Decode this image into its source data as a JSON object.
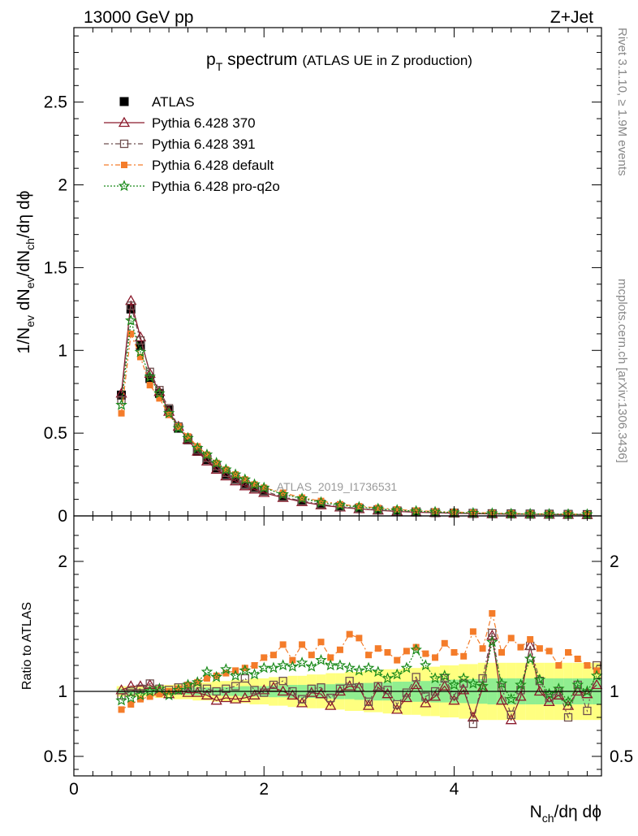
{
  "header": {
    "energy_label": "13000 GeV pp",
    "process_label": "Z+Jet"
  },
  "side_notes": {
    "rivet": "Rivet 3.1.10, ≥ 1.9M events",
    "mcplots": "mcplots.cern.ch [arXiv:1306.3436]"
  },
  "watermark": "ATLAS_2019_I1736531",
  "title": {
    "main_prefix": "p",
    "main_sub": "T",
    "main_suffix": " spectrum",
    "detail": "(ATLAS UE in Z production)"
  },
  "axes": {
    "top_ylabel": "1/N",
    "top_ylabel_sub1": "ev",
    "top_ylabel_mid": " dN",
    "top_ylabel_sub2": "ev",
    "top_ylabel_mid2": "/dN",
    "top_ylabel_sub3": "ch",
    "top_ylabel_tail": "/dη dϕ",
    "bottom_ylabel": "Ratio to ATLAS",
    "xlabel_prefix": "N",
    "xlabel_sub": "ch",
    "xlabel_tail": "/dη dϕ"
  },
  "legend": {
    "entries": [
      {
        "label": "ATLAS",
        "marker": "square-filled",
        "color": "#000000",
        "dash": ""
      },
      {
        "label": "Pythia 6.428 370",
        "marker": "triangle-open",
        "color": "#8b1a2c",
        "dash": ""
      },
      {
        "label": "Pythia 6.428 391",
        "marker": "square-open",
        "color": "#6e4f4f",
        "dash": "6 3 2 3"
      },
      {
        "label": "Pythia 6.428 default",
        "marker": "square-filled-small",
        "color": "#f47c2a",
        "dash": "6 3 2 3"
      },
      {
        "label": "Pythia 6.428 pro-q2o",
        "marker": "star",
        "color": "#1a8a1a",
        "dash": "2 2"
      }
    ]
  },
  "chart_data": [
    {
      "type": "scatter",
      "panel": "main",
      "xlim": [
        0,
        5.55
      ],
      "ylim": [
        0,
        2.95
      ],
      "yticks": [
        0,
        0.5,
        1,
        1.5,
        2,
        2.5
      ],
      "ytick_labels": [
        "0",
        "0.5",
        "1",
        "1.5",
        "2",
        "2.5"
      ],
      "series": [
        {
          "name": "ATLAS",
          "x": [
            0.5,
            0.6,
            0.7,
            0.8,
            0.9,
            1.0,
            1.1,
            1.2,
            1.3,
            1.4,
            1.5,
            1.6,
            1.7,
            1.8,
            1.9,
            2.0,
            2.2,
            2.4,
            2.6,
            2.8,
            3.0,
            3.2,
            3.4,
            3.6,
            3.8,
            4.0,
            4.2,
            4.4,
            4.6,
            4.8,
            5.0,
            5.2,
            5.4
          ],
          "y": [
            0.73,
            1.25,
            1.03,
            0.83,
            0.74,
            0.64,
            0.53,
            0.46,
            0.39,
            0.34,
            0.29,
            0.25,
            0.22,
            0.19,
            0.17,
            0.15,
            0.115,
            0.09,
            0.07,
            0.055,
            0.045,
            0.036,
            0.029,
            0.024,
            0.02,
            0.017,
            0.015,
            0.013,
            0.012,
            0.011,
            0.01,
            0.009,
            0.008
          ]
        },
        {
          "name": "Pythia 6.428 370",
          "x": [
            0.5,
            0.6,
            0.7,
            0.8,
            0.9,
            1.0,
            1.1,
            1.2,
            1.3,
            1.4,
            1.5,
            1.6,
            1.7,
            1.8,
            1.9,
            2.0,
            2.2,
            2.4,
            2.6,
            2.8,
            3.0,
            3.2,
            3.4,
            3.6,
            3.8,
            4.0,
            4.2,
            4.4,
            4.6,
            4.8,
            5.0,
            5.2,
            5.4
          ],
          "y": [
            0.74,
            1.3,
            1.08,
            0.86,
            0.75,
            0.63,
            0.54,
            0.46,
            0.39,
            0.33,
            0.28,
            0.24,
            0.21,
            0.18,
            0.16,
            0.14,
            0.11,
            0.085,
            0.065,
            0.052,
            0.042,
            0.034,
            0.027,
            0.022,
            0.019,
            0.016,
            0.014,
            0.012,
            0.011,
            0.01,
            0.009,
            0.008,
            0.007
          ]
        },
        {
          "name": "Pythia 6.428 391",
          "x": [
            0.5,
            0.6,
            0.7,
            0.8,
            0.9,
            1.0,
            1.1,
            1.2,
            1.3,
            1.4,
            1.5,
            1.6,
            1.7,
            1.8,
            1.9,
            2.0,
            2.2,
            2.4,
            2.6,
            2.8,
            3.0,
            3.2,
            3.4,
            3.6,
            3.8,
            4.0,
            4.2,
            4.4,
            4.6,
            4.8,
            5.0,
            5.2,
            5.4
          ],
          "y": [
            0.7,
            1.27,
            1.06,
            0.87,
            0.76,
            0.65,
            0.54,
            0.47,
            0.4,
            0.35,
            0.3,
            0.26,
            0.22,
            0.19,
            0.17,
            0.15,
            0.115,
            0.09,
            0.07,
            0.055,
            0.045,
            0.036,
            0.029,
            0.024,
            0.02,
            0.017,
            0.015,
            0.013,
            0.012,
            0.011,
            0.01,
            0.009,
            0.008
          ]
        },
        {
          "name": "Pythia 6.428 default",
          "x": [
            0.5,
            0.6,
            0.7,
            0.8,
            0.9,
            1.0,
            1.1,
            1.2,
            1.3,
            1.4,
            1.5,
            1.6,
            1.7,
            1.8,
            1.9,
            2.0,
            2.2,
            2.4,
            2.6,
            2.8,
            3.0,
            3.2,
            3.4,
            3.6,
            3.8,
            4.0,
            4.2,
            4.4,
            4.6,
            4.8,
            5.0,
            5.2,
            5.4
          ],
          "y": [
            0.62,
            1.1,
            0.96,
            0.79,
            0.71,
            0.61,
            0.54,
            0.48,
            0.42,
            0.37,
            0.32,
            0.28,
            0.25,
            0.22,
            0.19,
            0.17,
            0.14,
            0.11,
            0.09,
            0.07,
            0.058,
            0.048,
            0.039,
            0.032,
            0.027,
            0.023,
            0.02,
            0.017,
            0.015,
            0.013,
            0.012,
            0.011,
            0.01
          ]
        },
        {
          "name": "Pythia 6.428 pro-q2o",
          "x": [
            0.5,
            0.6,
            0.7,
            0.8,
            0.9,
            1.0,
            1.1,
            1.2,
            1.3,
            1.4,
            1.5,
            1.6,
            1.7,
            1.8,
            1.9,
            2.0,
            2.2,
            2.4,
            2.6,
            2.8,
            3.0,
            3.2,
            3.4,
            3.6,
            3.8,
            4.0,
            4.2,
            4.4,
            4.6,
            4.8,
            5.0,
            5.2,
            5.4
          ],
          "y": [
            0.67,
            1.18,
            0.99,
            0.84,
            0.74,
            0.62,
            0.53,
            0.47,
            0.41,
            0.37,
            0.32,
            0.28,
            0.25,
            0.22,
            0.19,
            0.17,
            0.13,
            0.105,
            0.082,
            0.065,
            0.053,
            0.043,
            0.035,
            0.029,
            0.024,
            0.02,
            0.017,
            0.015,
            0.013,
            0.012,
            0.011,
            0.01,
            0.009
          ]
        }
      ]
    },
    {
      "type": "scatter",
      "panel": "ratio",
      "xlim": [
        0,
        5.55
      ],
      "xticks": [
        0,
        2,
        4
      ],
      "xtick_labels": [
        "0",
        "2",
        "4"
      ],
      "ylim": [
        0.35,
        2.35
      ],
      "yticks": [
        0.5,
        1,
        2
      ],
      "ytick_labels": [
        "0.5",
        "1",
        "2"
      ],
      "band_x": [
        0.5,
        0.6,
        0.7,
        0.8,
        0.9,
        1.0,
        1.1,
        1.2,
        1.3,
        1.4,
        1.5,
        1.6,
        1.7,
        1.8,
        1.9,
        2.0,
        2.1,
        2.2,
        2.3,
        2.4,
        2.5,
        2.6,
        2.7,
        2.8,
        2.9,
        3.0,
        3.1,
        3.2,
        3.3,
        3.4,
        3.5,
        3.6,
        3.7,
        3.8,
        3.9,
        4.0,
        4.1,
        4.2,
        4.3,
        4.4,
        4.5,
        4.6,
        4.7,
        4.8,
        4.9,
        5.0,
        5.1,
        5.2,
        5.3,
        5.4,
        5.5
      ],
      "band_inner": [
        0.02,
        0.02,
        0.02,
        0.02,
        0.02,
        0.02,
        0.025,
        0.025,
        0.03,
        0.03,
        0.03,
        0.035,
        0.035,
        0.04,
        0.04,
        0.04,
        0.045,
        0.045,
        0.05,
        0.05,
        0.05,
        0.055,
        0.055,
        0.06,
        0.06,
        0.065,
        0.065,
        0.07,
        0.07,
        0.075,
        0.075,
        0.08,
        0.08,
        0.085,
        0.085,
        0.09,
        0.09,
        0.095,
        0.095,
        0.1,
        0.1,
        0.1,
        0.1,
        0.1,
        0.1,
        0.1,
        0.1,
        0.1,
        0.1,
        0.1,
        0.1
      ],
      "band_outer": [
        0.04,
        0.04,
        0.04,
        0.04,
        0.05,
        0.05,
        0.06,
        0.06,
        0.07,
        0.07,
        0.08,
        0.08,
        0.09,
        0.09,
        0.1,
        0.1,
        0.11,
        0.11,
        0.12,
        0.12,
        0.13,
        0.13,
        0.14,
        0.14,
        0.15,
        0.15,
        0.16,
        0.16,
        0.17,
        0.17,
        0.18,
        0.18,
        0.19,
        0.19,
        0.2,
        0.2,
        0.21,
        0.21,
        0.22,
        0.22,
        0.22,
        0.22,
        0.22,
        0.22,
        0.22,
        0.22,
        0.22,
        0.22,
        0.22,
        0.22,
        0.22
      ],
      "series": [
        {
          "name": "Pythia 6.428 370",
          "x": [
            0.5,
            0.6,
            0.7,
            0.8,
            0.9,
            1.0,
            1.1,
            1.2,
            1.3,
            1.4,
            1.5,
            1.6,
            1.7,
            1.8,
            1.9,
            2.0,
            2.1,
            2.2,
            2.3,
            2.4,
            2.5,
            2.6,
            2.7,
            2.8,
            2.9,
            3.0,
            3.1,
            3.2,
            3.3,
            3.4,
            3.5,
            3.6,
            3.7,
            3.8,
            3.9,
            4.0,
            4.1,
            4.2,
            4.3,
            4.4,
            4.5,
            4.6,
            4.7,
            4.8,
            4.9,
            5.0,
            5.1,
            5.2,
            5.3,
            5.4,
            5.5
          ],
          "y": [
            1.01,
            1.04,
            1.04,
            1.05,
            1.0,
            0.98,
            1.01,
            0.99,
            0.99,
            0.97,
            0.93,
            0.95,
            0.94,
            0.95,
            0.97,
            1.01,
            1.03,
            1.0,
            0.97,
            0.91,
            0.99,
            0.98,
            0.89,
            1.0,
            1.04,
            1.03,
            0.89,
            1.03,
            0.98,
            0.86,
            0.95,
            1.05,
            0.91,
            0.96,
            1.04,
            0.93,
            1.01,
            0.8,
            1.03,
            1.43,
            0.93,
            0.78,
            0.96,
            1.35,
            1.0,
            0.92,
            0.97,
            0.89,
            1.0,
            0.98,
            1.05
          ]
        },
        {
          "name": "Pythia 6.428 391",
          "x": [
            0.5,
            0.6,
            0.7,
            0.8,
            0.9,
            1.0,
            1.1,
            1.2,
            1.3,
            1.4,
            1.5,
            1.6,
            1.7,
            1.8,
            1.9,
            2.0,
            2.1,
            2.2,
            2.3,
            2.4,
            2.5,
            2.6,
            2.7,
            2.8,
            2.9,
            3.0,
            3.1,
            3.2,
            3.3,
            3.4,
            3.5,
            3.6,
            3.7,
            3.8,
            3.9,
            4.0,
            4.1,
            4.2,
            4.3,
            4.4,
            4.5,
            4.6,
            4.7,
            4.8,
            4.9,
            5.0,
            5.1,
            5.2,
            5.3,
            5.4,
            5.5
          ],
          "y": [
            0.97,
            1.0,
            1.02,
            1.06,
            1.02,
            1.01,
            1.03,
            1.04,
            1.03,
            1.02,
            1.0,
            1.02,
            1.04,
            1.1,
            1.01,
            0.99,
            1.05,
            1.08,
            1.0,
            0.94,
            1.02,
            1.03,
            0.95,
            1.02,
            1.08,
            1.03,
            0.92,
            1.04,
            1.01,
            0.9,
            0.99,
            1.11,
            0.96,
            1.0,
            1.1,
            0.97,
            1.06,
            0.75,
            1.1,
            1.45,
            1.03,
            0.82,
            1.01,
            1.35,
            1.08,
            0.95,
            1.0,
            0.8,
            1.05,
            0.85,
            1.2
          ]
        },
        {
          "name": "Pythia 6.428 default",
          "x": [
            0.5,
            0.6,
            0.7,
            0.8,
            0.9,
            1.0,
            1.1,
            1.2,
            1.3,
            1.4,
            1.5,
            1.6,
            1.7,
            1.8,
            1.9,
            2.0,
            2.1,
            2.2,
            2.3,
            2.4,
            2.5,
            2.6,
            2.7,
            2.8,
            2.9,
            3.0,
            3.1,
            3.2,
            3.3,
            3.4,
            3.5,
            3.6,
            3.7,
            3.8,
            3.9,
            4.0,
            4.1,
            4.2,
            4.3,
            4.4,
            4.5,
            4.6,
            4.7,
            4.8,
            4.9,
            5.0,
            5.1,
            5.2,
            5.3,
            5.4,
            5.5
          ],
          "y": [
            0.86,
            0.9,
            0.94,
            0.96,
            0.98,
            1.0,
            1.02,
            1.05,
            1.07,
            1.1,
            1.12,
            1.14,
            1.16,
            1.18,
            1.2,
            1.26,
            1.28,
            1.36,
            1.24,
            1.36,
            1.28,
            1.38,
            1.26,
            1.32,
            1.44,
            1.41,
            1.28,
            1.33,
            1.3,
            1.24,
            1.31,
            1.34,
            1.29,
            1.26,
            1.37,
            1.3,
            1.27,
            1.46,
            1.33,
            1.6,
            1.3,
            1.41,
            1.34,
            1.4,
            1.33,
            1.31,
            1.2,
            1.3,
            1.25,
            1.2,
            1.16
          ]
        },
        {
          "name": "Pythia 6.428 pro-q2o",
          "x": [
            0.5,
            0.6,
            0.7,
            0.8,
            0.9,
            1.0,
            1.1,
            1.2,
            1.3,
            1.4,
            1.5,
            1.6,
            1.7,
            1.8,
            1.9,
            2.0,
            2.1,
            2.2,
            2.3,
            2.4,
            2.5,
            2.6,
            2.7,
            2.8,
            2.9,
            3.0,
            3.1,
            3.2,
            3.3,
            3.4,
            3.5,
            3.6,
            3.7,
            3.8,
            3.9,
            4.0,
            4.1,
            4.2,
            4.3,
            4.4,
            4.5,
            4.6,
            4.7,
            4.8,
            4.9,
            5.0,
            5.1,
            5.2,
            5.3,
            5.4,
            5.5
          ],
          "y": [
            0.93,
            0.95,
            0.97,
            1.0,
            1.02,
            0.97,
            1.01,
            1.05,
            1.07,
            1.15,
            1.11,
            1.17,
            1.12,
            1.16,
            1.13,
            1.18,
            1.18,
            1.2,
            1.19,
            1.22,
            1.19,
            1.24,
            1.2,
            1.2,
            1.18,
            1.16,
            1.18,
            1.15,
            1.1,
            1.13,
            1.18,
            1.32,
            1.2,
            1.1,
            1.12,
            1.05,
            1.1,
            1.06,
            1.04,
            1.38,
            1.06,
            0.94,
            1.05,
            1.25,
            1.09,
            0.98,
            1.02,
            0.92,
            1.05,
            1.0,
            1.12
          ]
        }
      ]
    }
  ]
}
